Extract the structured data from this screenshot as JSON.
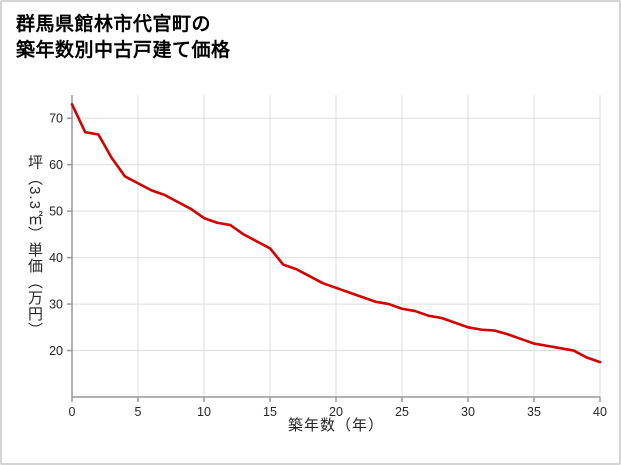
{
  "title": {
    "line1": "群馬県館林市代官町の",
    "line2": "築年数別中古戸建て価格"
  },
  "chart_data": {
    "type": "line",
    "title": "群馬県館林市代官町の築年数別中古戸建て価格",
    "xlabel": "築年数（年）",
    "ylabel": "坪（3.3㎡）単価（万円）",
    "x": [
      0,
      1,
      2,
      3,
      4,
      5,
      6,
      7,
      8,
      9,
      10,
      11,
      12,
      13,
      14,
      15,
      16,
      17,
      18,
      19,
      20,
      21,
      22,
      23,
      24,
      25,
      26,
      27,
      28,
      29,
      30,
      31,
      32,
      33,
      34,
      35,
      36,
      37,
      38,
      39,
      40
    ],
    "values": [
      73,
      67,
      66.5,
      61.5,
      57.5,
      56,
      54.5,
      53.5,
      52,
      50.5,
      48.5,
      47.5,
      47,
      45,
      43.5,
      42,
      38.5,
      37.5,
      36,
      34.5,
      33.5,
      32.5,
      31.5,
      30.5,
      30,
      29,
      28.5,
      27.5,
      27,
      26,
      25,
      24.5,
      24.3,
      23.5,
      22.5,
      21.5,
      21,
      20.5,
      20,
      18.5,
      17.5
    ],
    "xlim": [
      0,
      40
    ],
    "ylim": [
      10,
      75
    ],
    "x_ticks": [
      0,
      5,
      10,
      15,
      20,
      25,
      30,
      35,
      40
    ],
    "y_ticks": [
      20,
      30,
      40,
      50,
      60,
      70
    ],
    "grid": true,
    "legend": false,
    "line_color": "#d40000",
    "axis_color": "#999999",
    "grid_color": "#dddddd",
    "text_color": "#262626"
  }
}
